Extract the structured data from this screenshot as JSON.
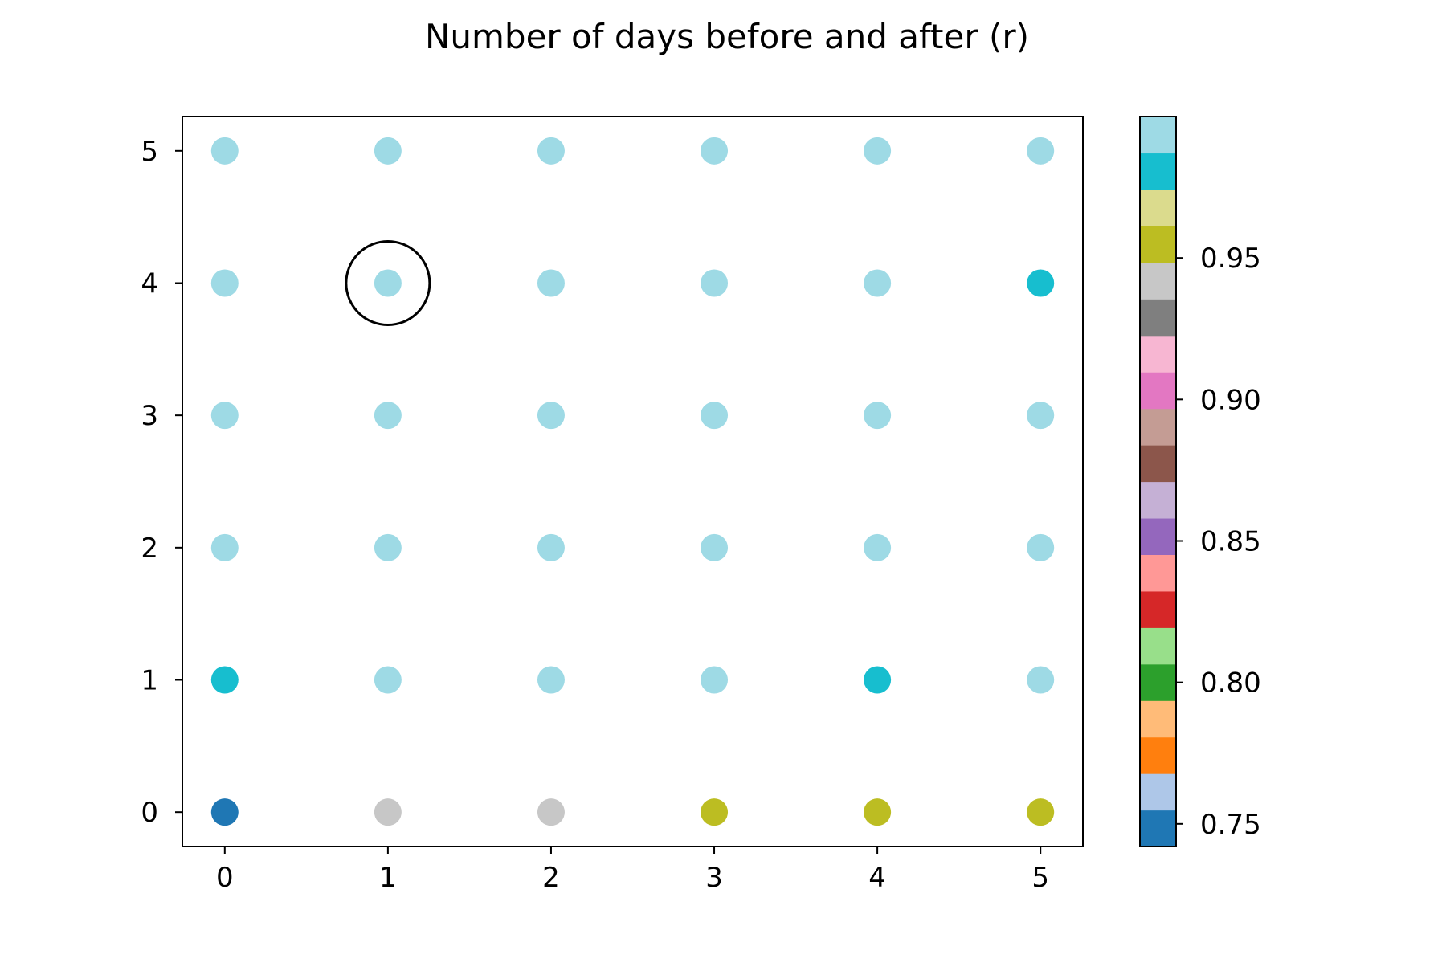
{
  "chart_data": {
    "type": "scatter",
    "title": "Number of days before and after (r)",
    "xlabel": "",
    "ylabel": "",
    "xlim": [
      -0.26,
      5.26
    ],
    "ylim": [
      -0.26,
      5.26
    ],
    "x_ticks": [
      "0",
      "1",
      "2",
      "3",
      "4",
      "5"
    ],
    "y_ticks": [
      "0",
      "1",
      "2",
      "3",
      "4",
      "5"
    ],
    "grid": false,
    "points": [
      {
        "x": 0,
        "y": 5,
        "value": 0.995
      },
      {
        "x": 1,
        "y": 5,
        "value": 0.995
      },
      {
        "x": 2,
        "y": 5,
        "value": 0.995
      },
      {
        "x": 3,
        "y": 5,
        "value": 0.995
      },
      {
        "x": 4,
        "y": 5,
        "value": 0.995
      },
      {
        "x": 5,
        "y": 5,
        "value": 0.995
      },
      {
        "x": 0,
        "y": 4,
        "value": 0.995
      },
      {
        "x": 1,
        "y": 4,
        "value": 0.995
      },
      {
        "x": 2,
        "y": 4,
        "value": 0.995
      },
      {
        "x": 3,
        "y": 4,
        "value": 0.995
      },
      {
        "x": 4,
        "y": 4,
        "value": 0.995
      },
      {
        "x": 5,
        "y": 4,
        "value": 0.983
      },
      {
        "x": 0,
        "y": 3,
        "value": 0.995
      },
      {
        "x": 1,
        "y": 3,
        "value": 0.995
      },
      {
        "x": 2,
        "y": 3,
        "value": 0.995
      },
      {
        "x": 3,
        "y": 3,
        "value": 0.995
      },
      {
        "x": 4,
        "y": 3,
        "value": 0.995
      },
      {
        "x": 5,
        "y": 3,
        "value": 0.995
      },
      {
        "x": 0,
        "y": 2,
        "value": 0.995
      },
      {
        "x": 1,
        "y": 2,
        "value": 0.995
      },
      {
        "x": 2,
        "y": 2,
        "value": 0.995
      },
      {
        "x": 3,
        "y": 2,
        "value": 0.995
      },
      {
        "x": 4,
        "y": 2,
        "value": 0.995
      },
      {
        "x": 5,
        "y": 2,
        "value": 0.995
      },
      {
        "x": 0,
        "y": 1,
        "value": 0.983
      },
      {
        "x": 1,
        "y": 1,
        "value": 0.995
      },
      {
        "x": 2,
        "y": 1,
        "value": 0.995
      },
      {
        "x": 3,
        "y": 1,
        "value": 0.995
      },
      {
        "x": 4,
        "y": 1,
        "value": 0.983
      },
      {
        "x": 5,
        "y": 1,
        "value": 0.995
      },
      {
        "x": 0,
        "y": 0,
        "value": 0.748
      },
      {
        "x": 1,
        "y": 0,
        "value": 0.943
      },
      {
        "x": 2,
        "y": 0,
        "value": 0.943
      },
      {
        "x": 3,
        "y": 0,
        "value": 0.955
      },
      {
        "x": 4,
        "y": 0,
        "value": 0.955
      },
      {
        "x": 5,
        "y": 0,
        "value": 0.955
      }
    ],
    "highlight": {
      "x": 1,
      "y": 4,
      "marker": "open-circle"
    },
    "colorbar": {
      "colormap": "tab20",
      "range": [
        0.742,
        1.0
      ],
      "ticks": [
        0.75,
        0.8,
        0.85,
        0.9,
        0.95
      ],
      "tick_labels": [
        "0.75",
        "0.80",
        "0.85",
        "0.90",
        "0.95"
      ],
      "colors": [
        "#1f77b4",
        "#aec7e8",
        "#ff7f0e",
        "#ffbb78",
        "#2ca02c",
        "#98df8a",
        "#d62728",
        "#ff9896",
        "#9467bd",
        "#c5b0d5",
        "#8c564b",
        "#c49c94",
        "#e377c2",
        "#f7b6d2",
        "#7f7f7f",
        "#c7c7c7",
        "#bcbd22",
        "#dbdb8d",
        "#17becf",
        "#9edae5"
      ]
    }
  }
}
